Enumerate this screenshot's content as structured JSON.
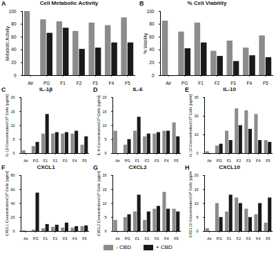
{
  "chart_data": [
    {
      "type": "bar",
      "panel": "A",
      "title": "Cell Metabolic Activity",
      "y_label": "Metabolic Activity",
      "categories": [
        "Air",
        "PG",
        "F1",
        "F2",
        "F3",
        "F4",
        "F5"
      ],
      "series": [
        {
          "name": "- CBD",
          "color": "#8c8c8c",
          "values": [
            100,
            87,
            84,
            69,
            82,
            78,
            90
          ]
        },
        {
          "name": "+ CBD",
          "color": "#1a1a1a",
          "values": [
            null,
            66,
            74,
            41,
            43,
            51,
            51
          ]
        }
      ],
      "ylim": [
        0,
        100
      ],
      "yticks": [
        0,
        20,
        40,
        60,
        80,
        100
      ]
    },
    {
      "type": "bar",
      "panel": "B",
      "title": "% Cell Viability",
      "y_label": "% Viability",
      "categories": [
        "Air",
        "PG",
        "F1",
        "F2",
        "F3",
        "F4",
        "F5"
      ],
      "series": [
        {
          "name": "- CBD",
          "color": "#8c8c8c",
          "values": [
            85,
            68,
            82,
            38,
            54,
            43,
            62
          ]
        },
        {
          "name": "+ CBD",
          "color": "#1a1a1a",
          "values": [
            null,
            42,
            51,
            30,
            22,
            31,
            28
          ]
        }
      ],
      "ylim": [
        0,
        100
      ],
      "yticks": [
        0,
        20,
        40,
        60,
        80,
        100
      ]
    },
    {
      "type": "bar",
      "panel": "C",
      "title": "IL-1β",
      "y_label": "IL-1β Concentration/10⁶ Cells [pg/ml]",
      "categories": [
        "Air",
        "PG",
        "F1",
        "F2",
        "F3",
        "F4",
        "F5"
      ],
      "series": [
        {
          "name": "- CBD",
          "color": "#8c8c8c",
          "values": [
            1,
            2.5,
            7,
            7,
            7,
            7,
            3
          ]
        },
        {
          "name": "+ CBD",
          "color": "#1a1a1a",
          "values": [
            null,
            4,
            14,
            7.5,
            7.5,
            8,
            6
          ]
        }
      ],
      "ylim": [
        0,
        20
      ],
      "yticks": [
        0,
        5,
        10,
        15,
        20
      ]
    },
    {
      "type": "bar",
      "panel": "D",
      "title": "IL-6",
      "y_label": "IL-6 Concentration/10⁶ Cells [pg/ml]",
      "categories": [
        "Air",
        "PG",
        "F1",
        "F2",
        "F3",
        "F4",
        "F5"
      ],
      "series": [
        {
          "name": "- CBD",
          "color": "#8c8c8c",
          "values": [
            8,
            3,
            8,
            6,
            7,
            8,
            11
          ]
        },
        {
          "name": "+ CBD",
          "color": "#1a1a1a",
          "values": [
            null,
            5,
            13,
            7,
            7.5,
            8,
            6
          ]
        }
      ],
      "ylim": [
        0,
        20
      ],
      "yticks": [
        0,
        5,
        10,
        15,
        20
      ]
    },
    {
      "type": "bar",
      "panel": "E",
      "title": "IL-10",
      "y_label": "IL-10 Concentration/10⁶ Cells [pg/ml]",
      "categories": [
        "Air",
        "PG",
        "F1",
        "F2",
        "F3",
        "F4",
        "F5"
      ],
      "series": [
        {
          "name": "- CBD",
          "color": "#8c8c8c",
          "values": [
            1,
            4,
            12,
            24,
            23,
            21,
            7
          ]
        },
        {
          "name": "+ CBD",
          "color": "#1a1a1a",
          "values": [
            null,
            5,
            7,
            15,
            13,
            7,
            6
          ]
        }
      ],
      "ylim": [
        0,
        30
      ],
      "yticks": [
        0,
        10,
        20,
        30
      ]
    },
    {
      "type": "bar",
      "panel": "F",
      "title": "CXCL1",
      "y_label": "CXCL1 Concentration/10⁶ Cells [pg/ml]",
      "categories": [
        "Air",
        "PG",
        "F1",
        "F2",
        "F3",
        "F4",
        "F5"
      ],
      "series": [
        {
          "name": "- CBD",
          "color": "#8c8c8c",
          "values": [
            1,
            2,
            4,
            6,
            5,
            5,
            7
          ]
        },
        {
          "name": "+ CBD",
          "color": "#1a1a1a",
          "values": [
            null,
            55,
            10,
            9,
            12,
            7,
            8
          ]
        }
      ],
      "ylim": [
        0,
        80
      ],
      "yticks": [
        0,
        20,
        40,
        60,
        80
      ]
    },
    {
      "type": "bar",
      "panel": "G",
      "title": "CXCL2",
      "y_label": "CXCL2 Concentration/10⁶ Cells [pg/ml]",
      "categories": [
        "Air",
        "PG",
        "F1",
        "F2",
        "F3",
        "F4",
        "F5"
      ],
      "series": [
        {
          "name": "- CBD",
          "color": "#8c8c8c",
          "values": [
            4,
            5,
            7,
            4,
            8,
            14,
            8
          ]
        },
        {
          "name": "+ CBD",
          "color": "#1a1a1a",
          "values": [
            null,
            6,
            13,
            7,
            9,
            8,
            7
          ]
        }
      ],
      "ylim": [
        0,
        20
      ],
      "yticks": [
        0,
        5,
        10,
        15,
        20
      ]
    },
    {
      "type": "bar",
      "panel": "H",
      "title": "CXCL10",
      "y_label": "CXCL10 Concentration/10⁶ Cells [pg/ml]",
      "categories": [
        "Air",
        "PG",
        "F1",
        "F2",
        "F3",
        "F4",
        "F5"
      ],
      "series": [
        {
          "name": "- CBD",
          "color": "#8c8c8c",
          "values": [
            1,
            10,
            7,
            12,
            8,
            6,
            3
          ]
        },
        {
          "name": "+ CBD",
          "color": "#1a1a1a",
          "values": [
            null,
            5,
            13,
            10,
            5,
            10,
            12
          ]
        }
      ],
      "ylim": [
        0,
        20
      ],
      "yticks": [
        0,
        5,
        10,
        15,
        20
      ]
    }
  ]
}
